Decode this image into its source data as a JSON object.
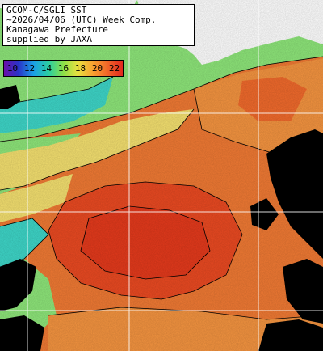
{
  "title": {
    "line1": "GCOM-C/SGLI SST",
    "line2": "~2026/04/06 (UTC) Week Comp.",
    "line3": "Kanagawa Prefecture",
    "line4": "supplied by JAXA"
  },
  "legend": {
    "labels": [
      "10",
      "12",
      "14",
      "16",
      "18",
      "20",
      "22"
    ]
  },
  "colors": {
    "land": "#ffffff",
    "cloud": "#000000",
    "warm_core": "#ea4a22",
    "warm": "#f06a2c",
    "mid": "#f49440",
    "cool": "#f4e070",
    "cold_green": "#8ee67a",
    "cold_cyan": "#3ed6c8",
    "grid": "#ffffff"
  }
}
